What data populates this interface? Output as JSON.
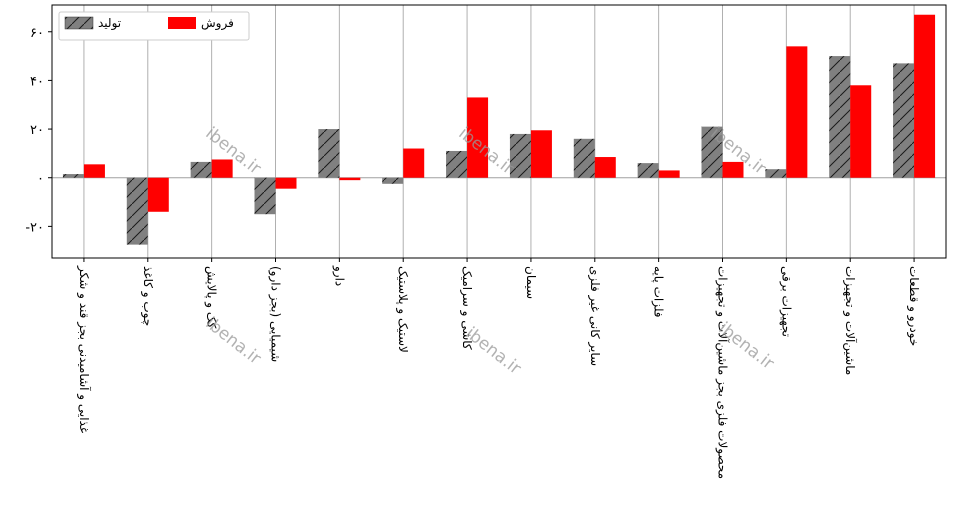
{
  "chart_data": {
    "type": "bar",
    "categories": [
      "غذایی و آشامیدنی بجز قند و شکر",
      "چوب و کاغذ",
      "کک و پالایش",
      "شیمیایی (بجز دارو)",
      "دارو",
      "لاستیک و پلاستیک",
      "کاشی و سرامیک",
      "سیمان",
      "سایر کانی غیر فلزی",
      "فلزات پایه",
      "محصولات فلزی بجز ماشین‌آلات و تجهیزات",
      "تجهیزات برقی",
      "ماشین‌آلات و تجهیزات",
      "خودرو و قطعات"
    ],
    "series": [
      {
        "name": "تولید",
        "color": "#808080",
        "hatch": "diagonal",
        "values": [
          1.5,
          -27.5,
          6.5,
          -15,
          20,
          -2.5,
          11,
          18,
          16,
          6,
          21,
          3.5,
          50,
          47
        ]
      },
      {
        "name": "فروش",
        "color": "#ff0000",
        "values": [
          5.5,
          -14,
          7.5,
          -4.5,
          -1,
          12,
          33,
          19.5,
          8.5,
          3,
          6.5,
          54,
          38,
          67
        ]
      }
    ],
    "ylim": [
      -33,
      71
    ],
    "yticks": [
      -20,
      0,
      20,
      40,
      60
    ],
    "ytick_labels": [
      "-۲۰",
      "۰",
      "۲۰",
      "۴۰",
      "۶۰"
    ],
    "grid": "x",
    "legend_position": "top-left",
    "title": "",
    "xlabel": "",
    "ylabel": ""
  },
  "watermark": "ibena.ir"
}
